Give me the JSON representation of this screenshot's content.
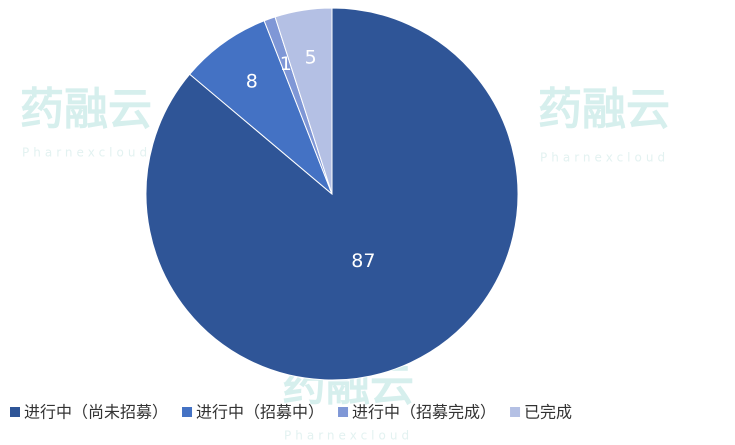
{
  "chart_data": {
    "type": "pie",
    "categories": [
      "进行中（尚未招募）",
      "进行中（招募中）",
      "进行中（招募完成）",
      "已完成"
    ],
    "values": [
      87,
      8,
      1,
      5
    ],
    "colors": [
      "#2f5597",
      "#4472c4",
      "#7f97d6",
      "#b4c0e4"
    ],
    "legend": "bottom",
    "watermark": {
      "text": "药融云",
      "subtext": "Pharnexcloud"
    }
  }
}
